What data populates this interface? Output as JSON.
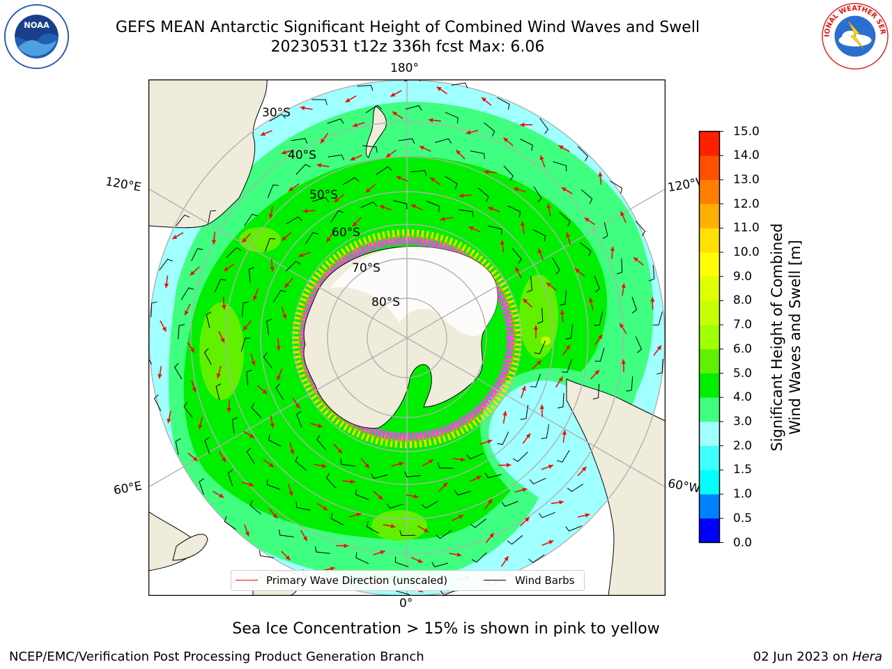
{
  "title": {
    "line1": "GEFS MEAN Antarctic Significant Height of Combined Wind Waves and Swell",
    "line2": "20230531 t12z 336h fcst   Max: 6.06"
  },
  "logos": {
    "left": "NOAA",
    "right": "NATIONAL WEATHER SERVICE"
  },
  "map": {
    "projection": "south-polar-stereographic",
    "land_color": "#efecdc",
    "ocean_color": "#ffffff",
    "grid_color": "#b0b0b0",
    "lon_labels": {
      "top": "180°",
      "bottom": "0°",
      "upper_left": "120°E",
      "upper_right": "120°W",
      "lower_left": "60°E",
      "lower_right": "60°W"
    },
    "lat_labels": [
      "30°S",
      "40°S",
      "50°S",
      "60°S",
      "70°S",
      "80°S"
    ],
    "legend": {
      "primary": "Primary Wave Direction (unscaled)",
      "barbs": "Wind Barbs",
      "primary_color": "#ff0000",
      "barbs_color": "#000000"
    },
    "arrow_color": "#e8100a",
    "sea_ice_colors": [
      "#ff40ff",
      "#ff9020",
      "#ffe000"
    ]
  },
  "colorbar": {
    "title_line1": "Significant Height of Combined",
    "title_line2": "Wind Waves and Swell [m]",
    "ticks": [
      "15.0",
      "14.0",
      "13.0",
      "12.0",
      "11.0",
      "10.0",
      "9.0",
      "8.0",
      "7.0",
      "6.0",
      "5.0",
      "4.0",
      "3.0",
      "2.0",
      "1.5",
      "1.0",
      "0.5",
      "0.0"
    ],
    "colors_bottom_to_top": [
      "#0000ff",
      "#0080ff",
      "#00ffff",
      "#40ffff",
      "#a0ffff",
      "#40ff80",
      "#00ee00",
      "#60f000",
      "#a0ff00",
      "#c8ff00",
      "#e0ff00",
      "#ffff00",
      "#ffe000",
      "#ffb000",
      "#ff8000",
      "#ff5000",
      "#ff2000"
    ]
  },
  "notes": {
    "sea_ice": "Sea Ice Concentration > 15% is shown in pink to yellow",
    "footer_left": "NCEP/EMC/Verification Post Processing Product Generation Branch",
    "footer_date": "02 Jun 2023 on ",
    "footer_host": "Hera"
  }
}
